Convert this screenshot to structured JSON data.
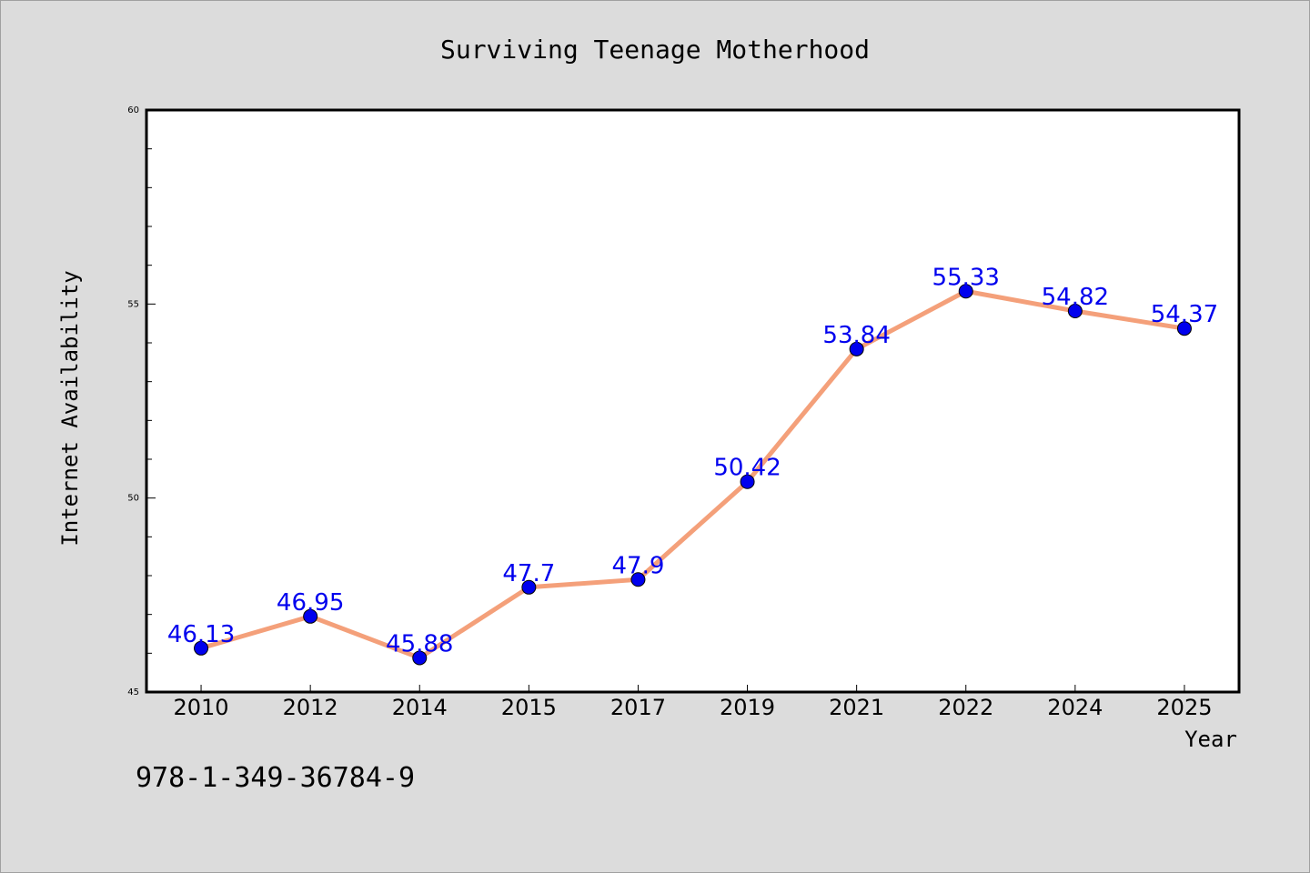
{
  "chart_data": {
    "type": "line",
    "title": "Surviving Teenage Motherhood",
    "xlabel": "Year",
    "ylabel": "Internet Availability",
    "categories": [
      "2010",
      "2012",
      "2014",
      "2015",
      "2017",
      "2019",
      "2021",
      "2022",
      "2024",
      "2025"
    ],
    "series": [
      {
        "values": [
          46.13,
          46.95,
          45.88,
          47.7,
          47.9,
          50.42,
          53.84,
          55.33,
          54.82,
          54.37
        ],
        "line_color": "#f4a07a",
        "marker_color": "#0000ee"
      }
    ],
    "data_labels": [
      "46.13",
      "46.95",
      "45.88",
      "47.7",
      "47.9",
      "50.42",
      "53.84",
      "55.33",
      "54.82",
      "54.37"
    ],
    "ylim": [
      45,
      60
    ],
    "yticks": [
      "45",
      "50",
      "55",
      "60"
    ],
    "grid": false,
    "legend": "none",
    "label_color": "#0000ee"
  },
  "footer": {
    "isbn": "978-1-349-36784-9"
  }
}
